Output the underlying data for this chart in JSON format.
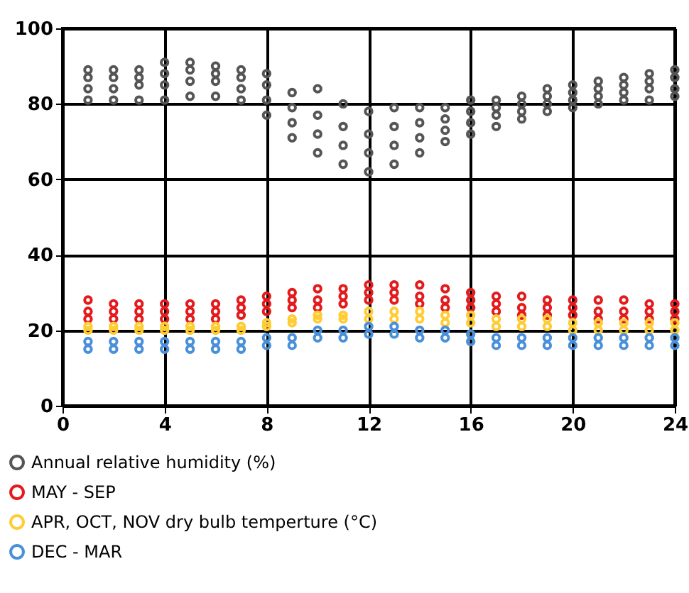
{
  "chart_data": {
    "type": "scatter",
    "xlim": [
      0,
      24
    ],
    "xticks": [
      0,
      4,
      8,
      12,
      16,
      20,
      24
    ],
    "ylim": [
      0,
      100
    ],
    "yticks": [
      0,
      20,
      40,
      60,
      80,
      100
    ],
    "grid": true,
    "legend": "bottom left",
    "marker": "circle",
    "series": [
      {
        "name": "Annual relative humidity (%)",
        "color": "#555555",
        "x": [
          1,
          1,
          1,
          1,
          2,
          2,
          2,
          2,
          3,
          3,
          3,
          3,
          4,
          4,
          4,
          4,
          5,
          5,
          5,
          5,
          6,
          6,
          6,
          6,
          7,
          7,
          7,
          7,
          8,
          8,
          8,
          8,
          9,
          9,
          9,
          9,
          10,
          10,
          10,
          10,
          11,
          11,
          11,
          11,
          12,
          12,
          12,
          12,
          13,
          13,
          13,
          13,
          14,
          14,
          14,
          14,
          15,
          15,
          15,
          15,
          16,
          16,
          16,
          16,
          17,
          17,
          17,
          17,
          18,
          18,
          18,
          18,
          19,
          19,
          19,
          19,
          20,
          20,
          20,
          20,
          21,
          21,
          21,
          21,
          22,
          22,
          22,
          22,
          23,
          23,
          23,
          23,
          24,
          24,
          24,
          24
        ],
        "values": [
          81,
          84,
          87,
          89,
          81,
          84,
          87,
          89,
          81,
          85,
          87,
          89,
          81,
          85,
          88,
          91,
          82,
          86,
          89,
          91,
          82,
          86,
          88,
          90,
          81,
          84,
          87,
          89,
          77,
          81,
          85,
          88,
          71,
          75,
          79,
          83,
          67,
          72,
          77,
          84,
          64,
          69,
          74,
          80,
          62,
          67,
          72,
          78,
          64,
          69,
          74,
          79,
          67,
          71,
          75,
          79,
          70,
          73,
          76,
          79,
          72,
          75,
          78,
          81,
          74,
          77,
          79,
          81,
          76,
          78,
          80,
          82,
          78,
          80,
          82,
          84,
          79,
          81,
          83,
          85,
          80,
          82,
          84,
          86,
          81,
          83,
          85,
          87,
          81,
          84,
          86,
          88,
          82,
          84,
          87,
          89
        ]
      },
      {
        "name": "MAY - SEP",
        "color": "#e41a1c",
        "x": [
          1,
          1,
          1,
          2,
          2,
          2,
          3,
          3,
          3,
          4,
          4,
          4,
          5,
          5,
          5,
          6,
          6,
          6,
          7,
          7,
          7,
          8,
          8,
          8,
          9,
          9,
          9,
          10,
          10,
          10,
          11,
          11,
          11,
          12,
          12,
          12,
          13,
          13,
          13,
          14,
          14,
          14,
          15,
          15,
          15,
          16,
          16,
          16,
          17,
          17,
          17,
          18,
          18,
          18,
          19,
          19,
          19,
          20,
          20,
          20,
          21,
          21,
          21,
          22,
          22,
          22,
          23,
          23,
          23,
          24,
          24,
          24
        ],
        "values": [
          23,
          25,
          28,
          23,
          25,
          27,
          23,
          25,
          27,
          23,
          25,
          27,
          23,
          25,
          27,
          23,
          25,
          27,
          24,
          26,
          28,
          25,
          27,
          29,
          26,
          28,
          30,
          26,
          28,
          31,
          27,
          29,
          31,
          28,
          30,
          32,
          28,
          30,
          32,
          27,
          29,
          32,
          26,
          28,
          31,
          26,
          28,
          30,
          25,
          27,
          29,
          24,
          26,
          29,
          24,
          26,
          28,
          24,
          26,
          28,
          23,
          25,
          28,
          23,
          25,
          28,
          23,
          25,
          27,
          23,
          25,
          27
        ]
      },
      {
        "name": "APR, OCT, NOV dry bulb temperture (°C)",
        "color": "#ffcc33",
        "x": [
          1,
          1,
          2,
          2,
          3,
          3,
          4,
          4,
          5,
          5,
          6,
          6,
          7,
          7,
          8,
          8,
          9,
          9,
          10,
          10,
          11,
          11,
          12,
          12,
          13,
          13,
          14,
          14,
          15,
          15,
          16,
          16,
          17,
          17,
          18,
          18,
          19,
          19,
          20,
          20,
          21,
          21,
          22,
          22,
          23,
          23,
          24,
          24
        ],
        "values": [
          20,
          21,
          20,
          21,
          20,
          21,
          20,
          21,
          20,
          21,
          20,
          21,
          20,
          21,
          21,
          22,
          22,
          23,
          23,
          24,
          23,
          24,
          23,
          25,
          23,
          25,
          23,
          25,
          22,
          24,
          22,
          24,
          21,
          23,
          21,
          23,
          21,
          23,
          20,
          22,
          20,
          22,
          20,
          22,
          20,
          22,
          20,
          22
        ]
      },
      {
        "name": "DEC - MAR",
        "color": "#4a90d9",
        "x": [
          1,
          1,
          2,
          2,
          3,
          3,
          4,
          4,
          5,
          5,
          6,
          6,
          7,
          7,
          8,
          8,
          9,
          9,
          10,
          10,
          11,
          11,
          12,
          12,
          13,
          13,
          14,
          14,
          15,
          15,
          16,
          16,
          17,
          17,
          18,
          18,
          19,
          19,
          20,
          20,
          21,
          21,
          22,
          22,
          23,
          23,
          24,
          24
        ],
        "values": [
          15,
          17,
          15,
          17,
          15,
          17,
          15,
          17,
          15,
          17,
          15,
          17,
          15,
          17,
          16,
          18,
          16,
          18,
          18,
          20,
          18,
          20,
          19,
          21,
          19,
          21,
          18,
          20,
          18,
          20,
          17,
          19,
          16,
          18,
          16,
          18,
          16,
          18,
          16,
          18,
          16,
          18,
          16,
          18,
          16,
          18,
          16,
          18
        ]
      }
    ]
  }
}
